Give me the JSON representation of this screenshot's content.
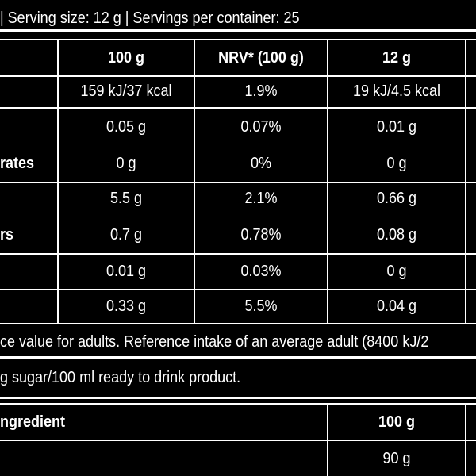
{
  "header": {
    "text": "| Serving size: 12 g | Servings per container: 25"
  },
  "table": {
    "columns": [
      "100 g",
      "NRV* (100 g)",
      "12 g"
    ],
    "rows": [
      {
        "label": "",
        "values": [
          "159 kJ/37 kcal",
          "1.9%",
          "19 kJ/4.5 kcal"
        ]
      },
      {
        "label": "",
        "values": [
          "0.05 g",
          "0.07%",
          "0.01 g"
        ]
      },
      {
        "label": "rates",
        "values": [
          "0 g",
          "0%",
          "0 g"
        ]
      },
      {
        "label": "",
        "values": [
          "5.5 g",
          "2.1%",
          "0.66 g"
        ]
      },
      {
        "label": "rs",
        "values": [
          "0.7 g",
          "0.78%",
          "0.08 g"
        ]
      },
      {
        "label": "",
        "values": [
          "0.01 g",
          "0.03%",
          "0 g"
        ]
      },
      {
        "label": "",
        "values": [
          "0.33 g",
          "5.5%",
          "0.04 g"
        ]
      }
    ]
  },
  "footnote": {
    "text": "ce value for adults. Reference intake of an average adult (8400 kJ/2"
  },
  "note": {
    "text": "g sugar/100 ml ready to drink product."
  },
  "ingredients": {
    "header_label": "ngredient",
    "header_col": "100 g",
    "row_value": "90 g"
  }
}
